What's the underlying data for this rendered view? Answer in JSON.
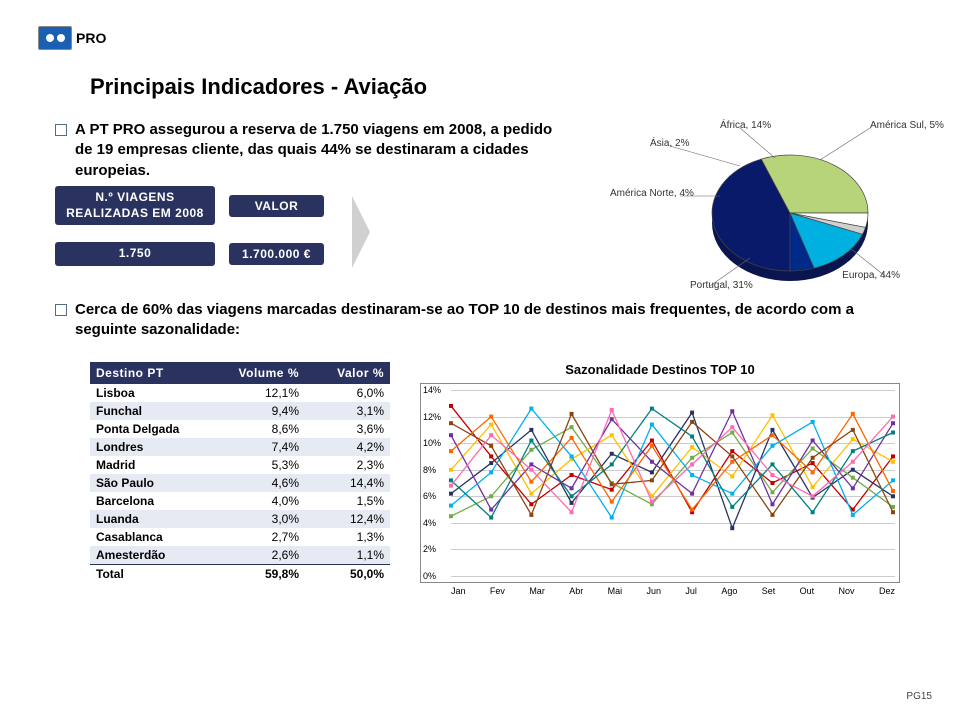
{
  "logo_text": "PRO",
  "page_title": "Principais Indicadores - Aviação",
  "bullet1": "A PT PRO assegurou a reserva de 1.750 viagens em 2008, a pedido de 19 empresas cliente, das quais 44% se destinaram a cidades europeias.",
  "row2_left": "N.º VIAGENS REALIZADAS EM 2008",
  "row2_right": "VALOR",
  "row3_left": "1.750",
  "row3_right": "1.700.000 €",
  "bullet2": "Cerca de 60% das viagens marcadas destinaram-se ao TOP 10 de destinos mais frequentes, de acordo com a seguinte sazonalidade:",
  "pie": {
    "slices": [
      {
        "label": "Europa, 44%",
        "value": 44,
        "color": "#0a1a6a"
      },
      {
        "label": "Portugal, 31%",
        "value": 31,
        "color": "#b8d47a"
      },
      {
        "label": "América Norte, 4%",
        "value": 4,
        "color": "#ffffff"
      },
      {
        "label": "Ásia, 2%",
        "value": 2,
        "color": "#d0d0d0"
      },
      {
        "label": "África, 14%",
        "value": 14,
        "color": "#00b0e0"
      },
      {
        "label": "América Sul, 5%",
        "value": 5,
        "color": "#002a8a"
      }
    ],
    "stroke": "#444"
  },
  "table": {
    "headers": [
      "Destino PT",
      "Volume %",
      "Valor %"
    ],
    "rows": [
      [
        "Lisboa",
        "12,1%",
        "6,0%"
      ],
      [
        "Funchal",
        "9,4%",
        "3,1%"
      ],
      [
        "Ponta Delgada",
        "8,6%",
        "3,6%"
      ],
      [
        "Londres",
        "7,4%",
        "4,2%"
      ],
      [
        "Madrid",
        "5,3%",
        "2,3%"
      ],
      [
        "São Paulo",
        "4,6%",
        "14,4%"
      ],
      [
        "Barcelona",
        "4,0%",
        "1,5%"
      ],
      [
        "Luanda",
        "3,0%",
        "12,4%"
      ],
      [
        "Casablanca",
        "2,7%",
        "1,3%"
      ],
      [
        "Amesterdão",
        "2,6%",
        "1,1%"
      ]
    ],
    "total": [
      "Total",
      "59,8%",
      "50,0%"
    ]
  },
  "linechart": {
    "title": "Sazonalidade Destinos TOP 10",
    "months": [
      "Jan",
      "Fev",
      "Mar",
      "Abr",
      "Mai",
      "Jun",
      "Jul",
      "Ago",
      "Set",
      "Out",
      "Nov",
      "Dez"
    ],
    "ymax": 14,
    "ystep": 2,
    "series": [
      {
        "color": "#2a335f",
        "values": [
          6.2,
          8.5,
          11.0,
          5.5,
          9.2,
          7.8,
          12.3,
          3.6,
          11.0,
          5.9,
          8.0,
          6.0
        ]
      },
      {
        "color": "#c00000",
        "values": [
          12.8,
          9.0,
          5.4,
          7.6,
          6.5,
          10.2,
          4.8,
          9.4,
          7.0,
          8.5,
          5.0,
          9.0
        ]
      },
      {
        "color": "#70ad47",
        "values": [
          4.5,
          6.0,
          9.5,
          11.2,
          7.0,
          5.4,
          8.9,
          10.8,
          6.3,
          9.6,
          7.4,
          5.2
        ]
      },
      {
        "color": "#ffc000",
        "values": [
          8.0,
          11.4,
          6.2,
          8.8,
          10.6,
          6.0,
          9.7,
          7.5,
          12.1,
          6.7,
          10.3,
          8.6
        ]
      },
      {
        "color": "#7030a0",
        "values": [
          10.6,
          5.0,
          8.4,
          6.6,
          11.8,
          8.6,
          6.2,
          12.4,
          5.4,
          10.2,
          6.6,
          11.5
        ]
      },
      {
        "color": "#00b0f0",
        "values": [
          5.3,
          7.8,
          12.6,
          9.0,
          4.4,
          11.4,
          7.6,
          6.2,
          9.8,
          11.6,
          4.6,
          7.2
        ]
      },
      {
        "color": "#ff6600",
        "values": [
          9.4,
          12.0,
          7.1,
          10.4,
          5.6,
          9.8,
          5.0,
          8.6,
          10.6,
          7.8,
          12.2,
          6.4
        ]
      },
      {
        "color": "#008080",
        "values": [
          7.2,
          4.4,
          10.2,
          6.0,
          8.4,
          12.6,
          10.5,
          5.2,
          8.4,
          4.8,
          9.4,
          10.8
        ]
      },
      {
        "color": "#8b4513",
        "values": [
          11.5,
          9.8,
          4.6,
          12.2,
          6.9,
          7.2,
          11.6,
          9.0,
          4.6,
          8.9,
          11.0,
          4.8
        ]
      },
      {
        "color": "#ff69b4",
        "values": [
          6.8,
          10.6,
          8.0,
          4.8,
          12.5,
          5.6,
          8.4,
          11.2,
          7.6,
          6.0,
          8.6,
          12.0
        ]
      }
    ]
  },
  "page_num": "PG15"
}
